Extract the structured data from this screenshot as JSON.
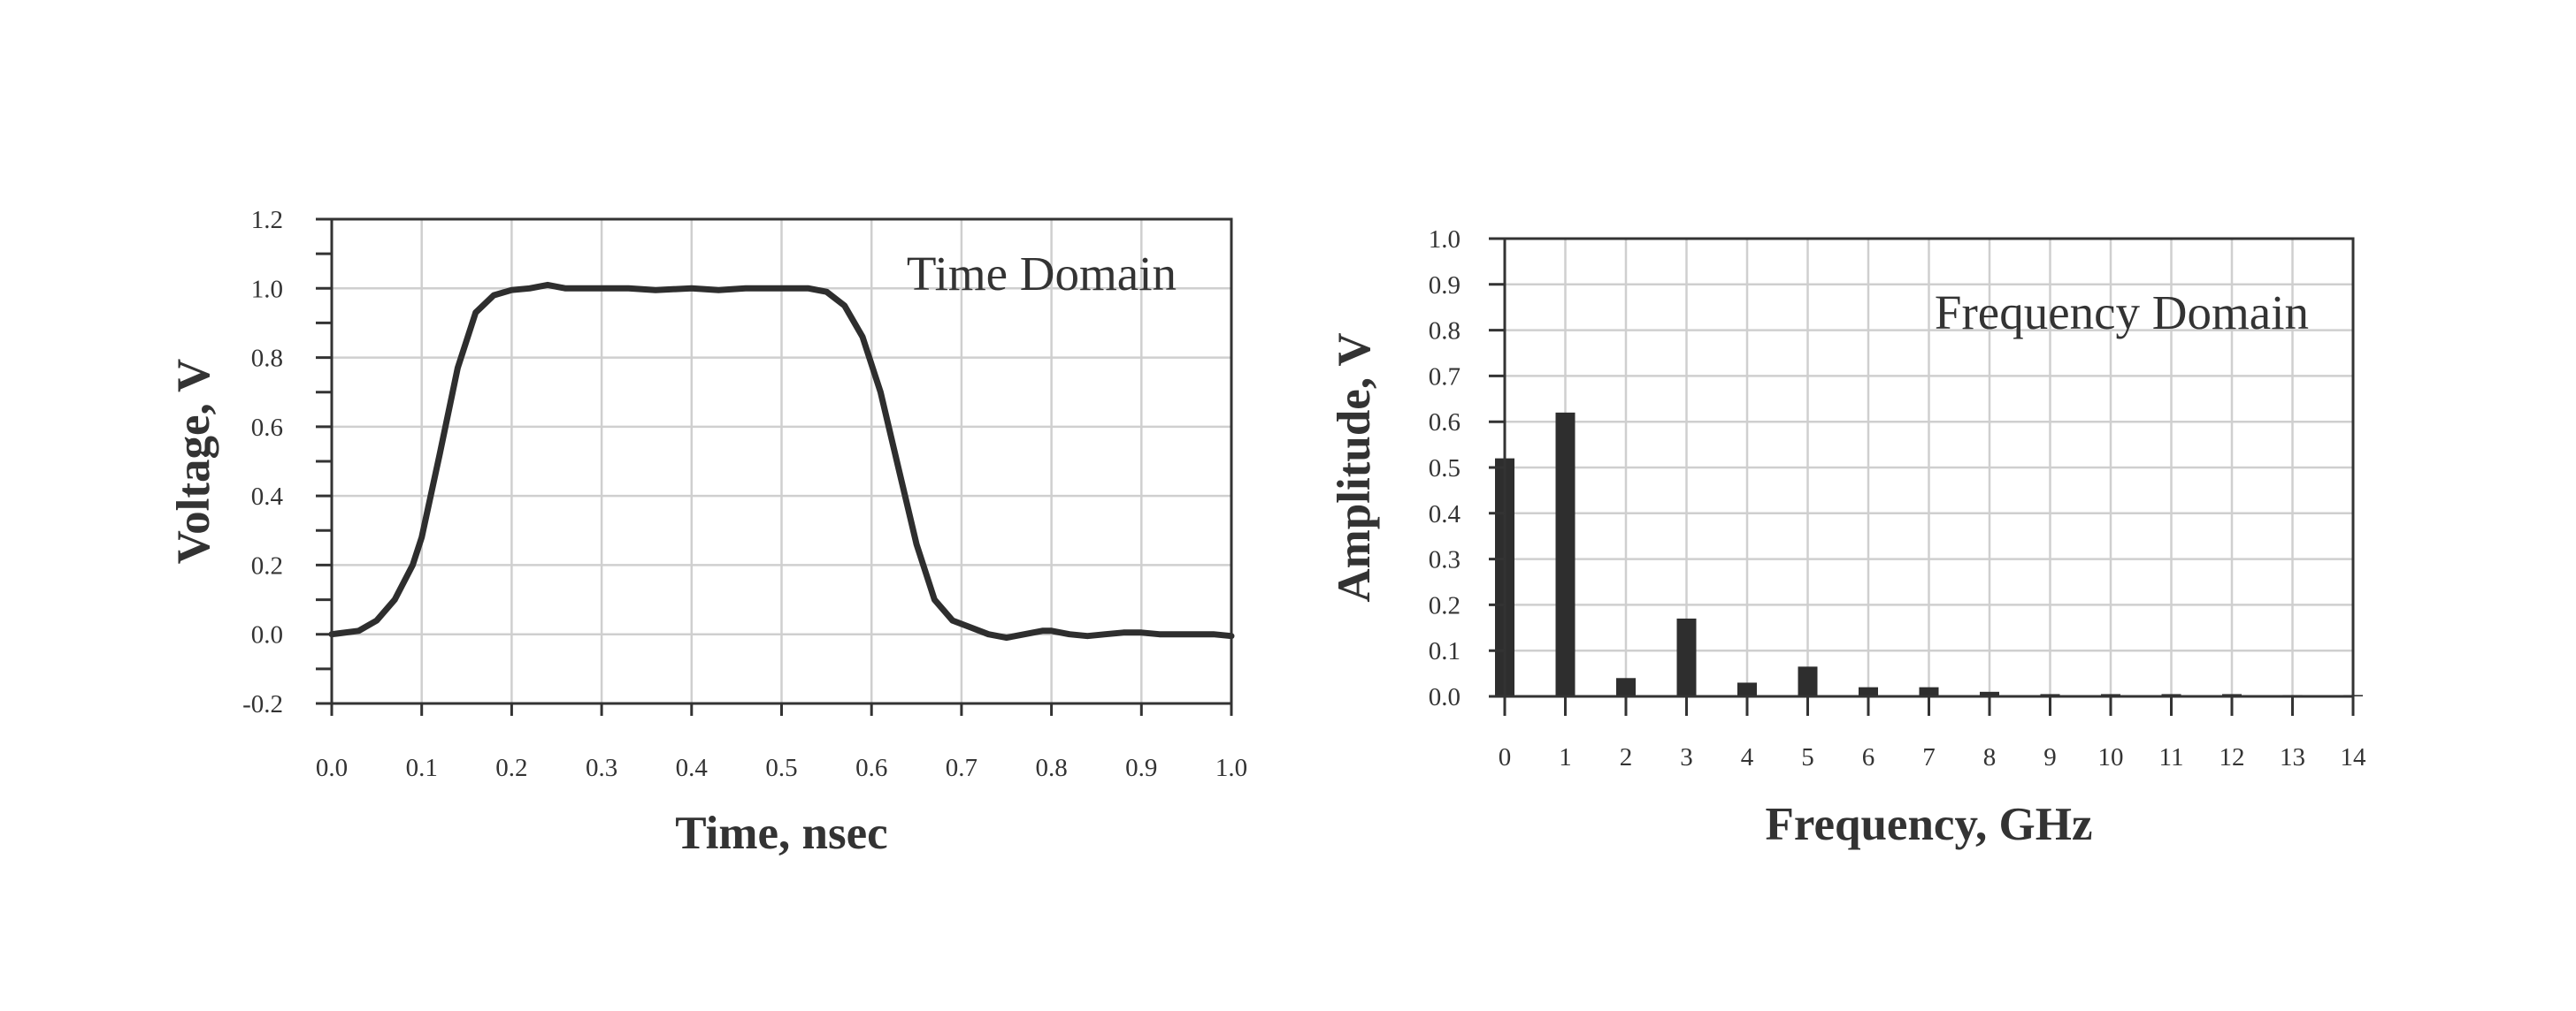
{
  "chart_data": [
    {
      "type": "line",
      "title": "",
      "annotation": "Time Domain",
      "xlabel": "Time, nsec",
      "ylabel": "Voltage, V",
      "xlim": [
        0.0,
        1.0
      ],
      "ylim": [
        -0.2,
        1.2
      ],
      "xticks": [
        "0.0",
        "0.1",
        "0.2",
        "0.3",
        "0.4",
        "0.5",
        "0.6",
        "0.7",
        "0.8",
        "0.9",
        "1.0"
      ],
      "yticks": [
        "-0.2",
        "0.0",
        "0.2",
        "0.4",
        "0.6",
        "0.8",
        "1.0",
        "1.2"
      ],
      "grid": true,
      "series": [
        {
          "x": [
            0.0,
            0.03,
            0.05,
            0.07,
            0.09,
            0.1,
            0.12,
            0.14,
            0.16,
            0.18,
            0.2,
            0.22,
            0.24,
            0.26,
            0.28,
            0.3,
            0.33,
            0.36,
            0.4,
            0.43,
            0.46,
            0.5,
            0.53,
            0.55,
            0.57,
            0.59,
            0.61,
            0.63,
            0.65,
            0.67,
            0.69,
            0.71,
            0.73,
            0.75,
            0.77,
            0.79,
            0.8,
            0.82,
            0.84,
            0.86,
            0.88,
            0.9,
            0.92,
            0.94,
            0.96,
            0.98,
            1.0
          ],
          "y": [
            0.0,
            0.01,
            0.04,
            0.1,
            0.2,
            0.28,
            0.52,
            0.77,
            0.93,
            0.98,
            0.995,
            1.0,
            1.01,
            1.0,
            1.0,
            1.0,
            1.0,
            0.995,
            1.0,
            0.995,
            1.0,
            1.0,
            1.0,
            0.99,
            0.95,
            0.86,
            0.7,
            0.48,
            0.26,
            0.1,
            0.04,
            0.02,
            0.0,
            -0.01,
            0.0,
            0.01,
            0.01,
            0.0,
            -0.005,
            0.0,
            0.005,
            0.005,
            0.0,
            0.0,
            0.0,
            0.0,
            -0.005
          ]
        }
      ]
    },
    {
      "type": "bar",
      "title": "",
      "annotation": "Frequency Domain",
      "xlabel": "Frequency, GHz",
      "ylabel": "Amplitude, V",
      "xlim": [
        0,
        14
      ],
      "ylim": [
        0.0,
        1.0
      ],
      "xticks": [
        "0",
        "1",
        "2",
        "3",
        "4",
        "5",
        "6",
        "7",
        "8",
        "9",
        "10",
        "11",
        "12",
        "13",
        "14"
      ],
      "yticks": [
        "0.0",
        "0.1",
        "0.2",
        "0.3",
        "0.4",
        "0.5",
        "0.6",
        "0.7",
        "0.8",
        "0.9",
        "1.0"
      ],
      "grid": true,
      "categories": [
        0,
        1,
        2,
        3,
        4,
        5,
        6,
        7,
        8,
        9,
        10,
        11,
        12,
        13,
        14
      ],
      "values": [
        0.52,
        0.62,
        0.04,
        0.17,
        0.03,
        0.065,
        0.02,
        0.02,
        0.01,
        0.005,
        0.005,
        0.005,
        0.005,
        0.003,
        0.003
      ]
    }
  ]
}
